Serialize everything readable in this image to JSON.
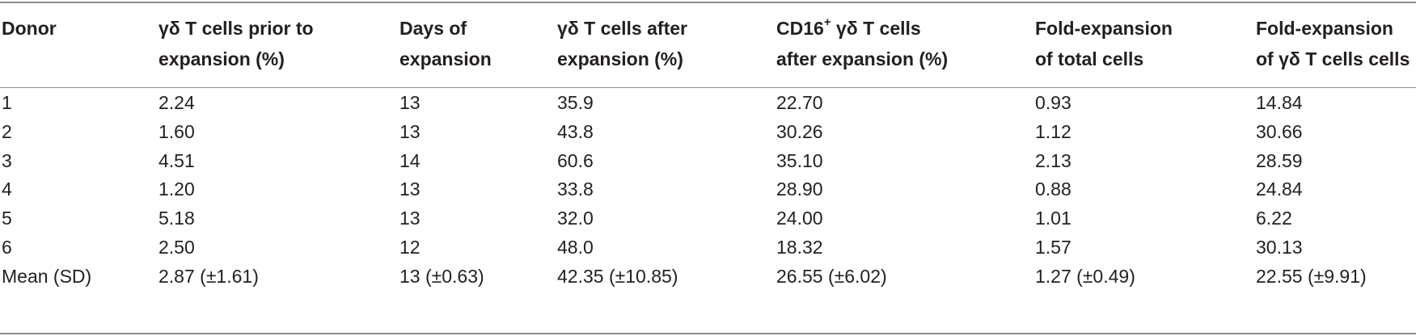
{
  "table": {
    "headers": [
      [
        "Donor"
      ],
      [
        "γδ T cells prior to",
        "expansion (%)"
      ],
      [
        "Days of",
        "expansion"
      ],
      [
        "γδ T cells after",
        "expansion (%)"
      ],
      [
        "CD16",
        "+",
        " γδ T cells",
        "after expansion (%)"
      ],
      [
        "Fold-expansion",
        "of total cells"
      ],
      [
        "Fold-expansion",
        "of γδ T cells cells"
      ]
    ],
    "rows": [
      [
        "1",
        "2.24",
        "13",
        "35.9",
        "22.70",
        "0.93",
        "14.84"
      ],
      [
        "2",
        "1.60",
        "13",
        "43.8",
        "30.26",
        "1.12",
        "30.66"
      ],
      [
        "3",
        "4.51",
        "14",
        "60.6",
        "35.10",
        "2.13",
        "28.59"
      ],
      [
        "4",
        "1.20",
        "13",
        "33.8",
        "28.90",
        "0.88",
        "24.84"
      ],
      [
        "5",
        "5.18",
        "13",
        "32.0",
        "24.00",
        "1.01",
        "6.22"
      ],
      [
        "6",
        "2.50",
        "12",
        "48.0",
        "18.32",
        "1.57",
        "30.13"
      ],
      [
        "Mean (SD)",
        "2.87 (±1.61)",
        "13 (±0.63)",
        "42.35 (±10.85)",
        "26.55 (±6.02)",
        "1.27 (±0.49)",
        "22.55 (±9.91)"
      ]
    ]
  },
  "colors": {
    "text": "#231f20",
    "rule": "#8c8c8c"
  }
}
